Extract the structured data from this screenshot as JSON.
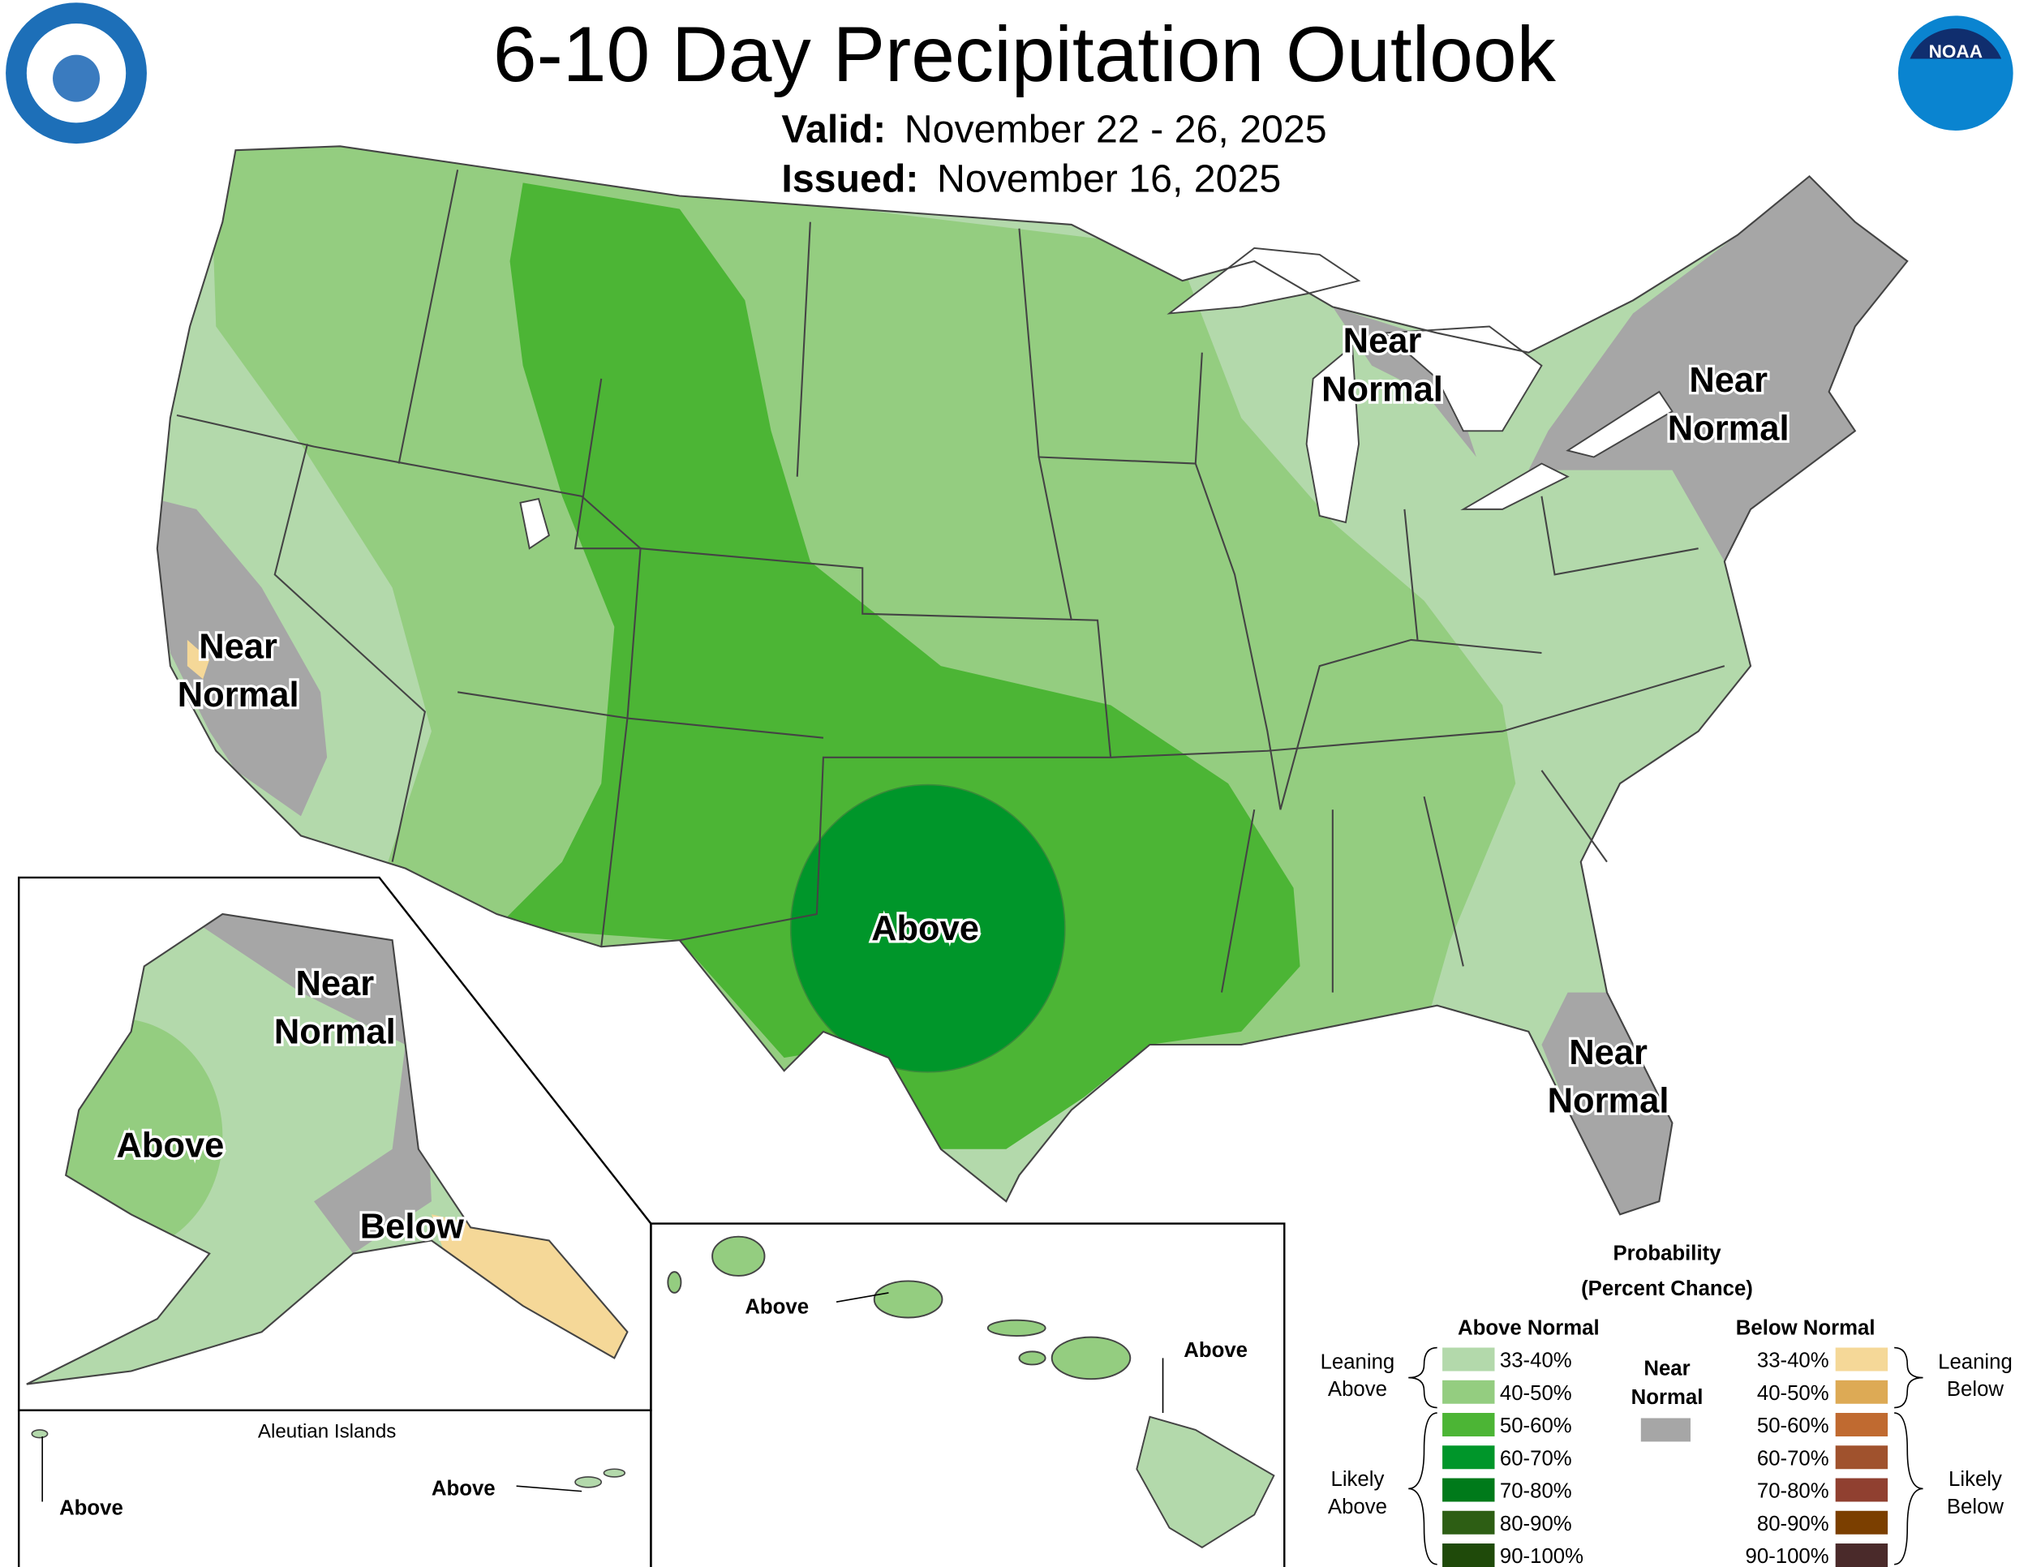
{
  "header": {
    "title": "6-10 Day Precipitation Outlook",
    "valid_label": "Valid:",
    "valid": "November 22 - 26, 2025",
    "issued_label": "Issued:",
    "issued": "November 16, 2025"
  },
  "logos": {
    "noaa": "NOAA"
  },
  "map_labels": [
    {
      "lines": [
        "Near",
        "Normal"
      ]
    },
    {
      "lines": [
        "Near",
        "Normal"
      ]
    },
    {
      "lines": [
        "Near",
        "Normal"
      ]
    },
    {
      "lines": [
        "Near",
        "Normal"
      ]
    },
    {
      "lines": [
        "Above"
      ]
    }
  ],
  "alaska_labels": [
    {
      "lines": [
        "Near",
        "Normal"
      ]
    },
    {
      "lines": [
        "Above"
      ]
    },
    {
      "lines": [
        "Below"
      ]
    }
  ],
  "aleutian": {
    "title": "Aleutian Islands",
    "labels": [
      "Above",
      "Above"
    ]
  },
  "hawaii_labels": [
    "Above",
    "Above"
  ],
  "legend": {
    "title": [
      "Probability",
      "(Percent Chance)"
    ],
    "above_heading": "Above Normal",
    "below_heading": "Below Normal",
    "near_normal": {
      "lines": [
        "Near",
        "Normal"
      ],
      "color": "#a6a6a6"
    },
    "above": [
      {
        "label": "33-40%",
        "color": "#b3d9ab"
      },
      {
        "label": "40-50%",
        "color": "#94cd80"
      },
      {
        "label": "50-60%",
        "color": "#4cb535"
      },
      {
        "label": "60-70%",
        "color": "#00962a"
      },
      {
        "label": "70-80%",
        "color": "#007a1a"
      },
      {
        "label": "80-90%",
        "color": "#2d5e14"
      },
      {
        "label": "90-100%",
        "color": "#1f4a0a"
      }
    ],
    "below": [
      {
        "label": "33-40%",
        "color": "#f5d898"
      },
      {
        "label": "40-50%",
        "color": "#ddaa55"
      },
      {
        "label": "50-60%",
        "color": "#c06a30"
      },
      {
        "label": "60-70%",
        "color": "#a0522d"
      },
      {
        "label": "70-80%",
        "color": "#904030"
      },
      {
        "label": "80-90%",
        "color": "#7b3f00"
      },
      {
        "label": "90-100%",
        "color": "#4a2a2a"
      }
    ],
    "leaning_above": [
      "Leaning",
      "Above"
    ],
    "likely_above": [
      "Likely",
      "Above"
    ],
    "leaning_below": [
      "Leaning",
      "Below"
    ],
    "likely_below": [
      "Likely",
      "Below"
    ]
  }
}
